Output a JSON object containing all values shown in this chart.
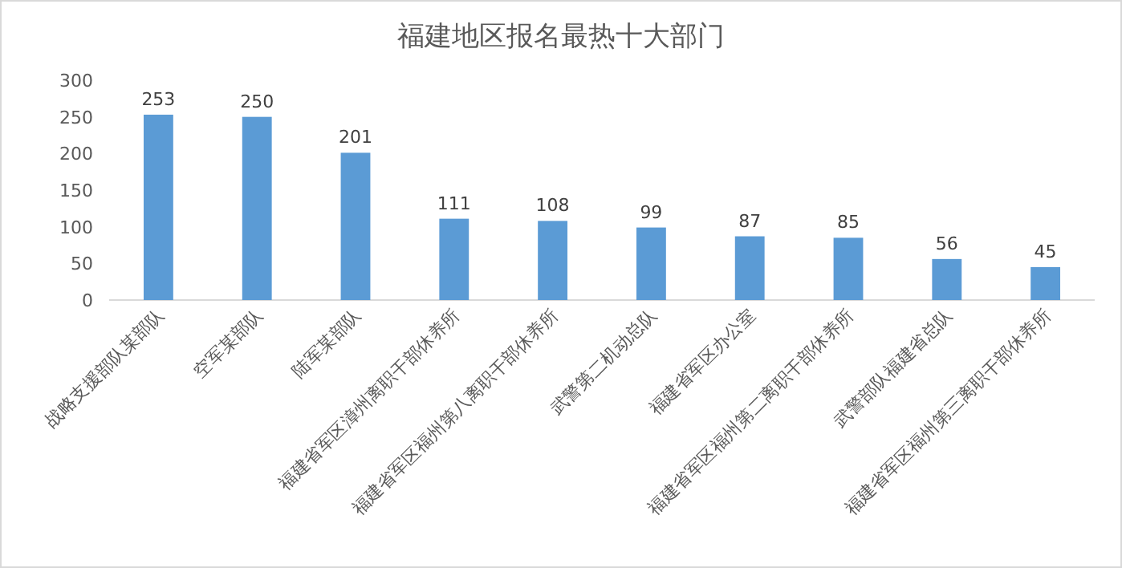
{
  "chart_data": {
    "type": "bar",
    "title": "福建地区报名最热十大部门",
    "categories": [
      "战略支援部队某部队",
      "空军某部队",
      "陆军某部队",
      "福建省军区漳州离职干部休养所",
      "福建省军区福州第八离职干部休养所",
      "武警第二机动总队",
      "福建省军区办公室",
      "福建省军区福州第二离职干部休养所",
      "武警部队福建省总队",
      "福建省军区福州第三离职干部休养所"
    ],
    "values": [
      253,
      250,
      201,
      111,
      108,
      99,
      87,
      85,
      56,
      45
    ],
    "color": "#5b9bd5",
    "ylim": [
      0,
      300
    ],
    "yticks": [
      0,
      50,
      100,
      150,
      200,
      250,
      300
    ],
    "grid": false,
    "data_labels": true
  }
}
